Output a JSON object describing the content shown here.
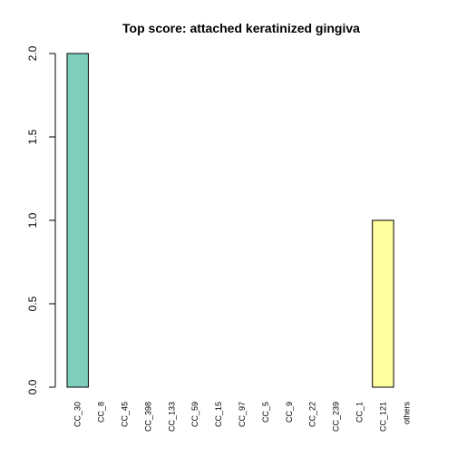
{
  "chart_data": {
    "type": "bar",
    "title": "Top score:  attached keratinized gingiva",
    "xlabel": "",
    "ylabel": "",
    "categories": [
      "CC_30",
      "CC_8",
      "CC_45",
      "CC_398",
      "CC_133",
      "CC_59",
      "CC_15",
      "CC_97",
      "CC_5",
      "CC_9",
      "CC_22",
      "CC_239",
      "CC_1",
      "CC_121",
      "others"
    ],
    "values": [
      2,
      0,
      0,
      0,
      0,
      0,
      0,
      0,
      0,
      0,
      0,
      0,
      0,
      1,
      0
    ],
    "colors": [
      "#7fcdbb",
      "#7fcdbb",
      "#7fcdbb",
      "#7fcdbb",
      "#7fcdbb",
      "#7fcdbb",
      "#7fcdbb",
      "#7fcdbb",
      "#7fcdbb",
      "#7fcdbb",
      "#7fcdbb",
      "#7fcdbb",
      "#7fcdbb",
      "#ffffa0",
      "#7fcdbb"
    ],
    "ylim": [
      0,
      2
    ],
    "yticks": [
      "0.0",
      "0.5",
      "1.0",
      "1.5",
      "2.0"
    ],
    "grid": false,
    "legend": "none"
  }
}
